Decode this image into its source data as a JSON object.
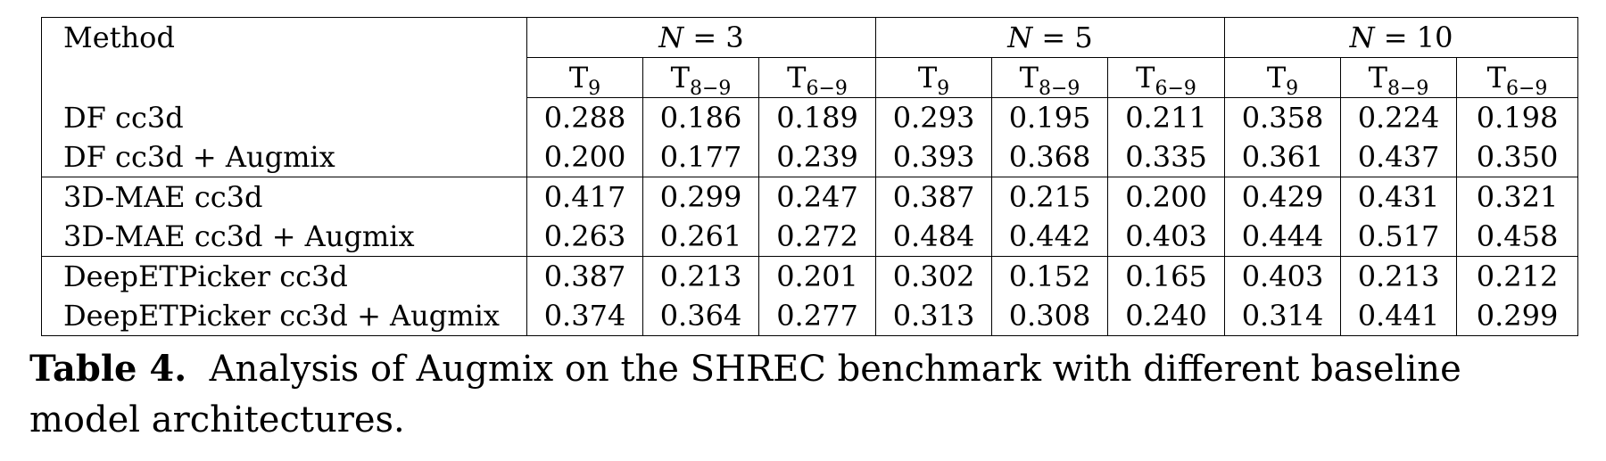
{
  "table": {
    "method_header": "Method",
    "groups": [
      {
        "label": "N = 3",
        "symbol": "N",
        "eq": "= 3"
      },
      {
        "label": "N = 5",
        "symbol": "N",
        "eq": "= 5"
      },
      {
        "label": "N = 10",
        "symbol": "N",
        "eq": "= 10"
      }
    ],
    "subcolumns": [
      {
        "base": "T",
        "sub": "9"
      },
      {
        "base": "T",
        "sub": "8−9"
      },
      {
        "base": "T",
        "sub": "6−9"
      }
    ],
    "rows": [
      {
        "method": "DF cc3d",
        "values": [
          "0.288",
          "0.186",
          "0.189",
          "0.293",
          "0.195",
          "0.211",
          "0.358",
          "0.224",
          "0.198"
        ]
      },
      {
        "method": "DF cc3d + Augmix",
        "values": [
          "0.200",
          "0.177",
          "0.239",
          "0.393",
          "0.368",
          "0.335",
          "0.361",
          "0.437",
          "0.350"
        ]
      },
      {
        "method": "3D-MAE cc3d",
        "values": [
          "0.417",
          "0.299",
          "0.247",
          "0.387",
          "0.215",
          "0.200",
          "0.429",
          "0.431",
          "0.321"
        ]
      },
      {
        "method": "3D-MAE cc3d + Augmix",
        "values": [
          "0.263",
          "0.261",
          "0.272",
          "0.484",
          "0.442",
          "0.403",
          "0.444",
          "0.517",
          "0.458"
        ]
      },
      {
        "method": "DeepETPicker cc3d",
        "values": [
          "0.387",
          "0.213",
          "0.201",
          "0.302",
          "0.152",
          "0.165",
          "0.403",
          "0.213",
          "0.212"
        ]
      },
      {
        "method": "DeepETPicker cc3d + Augmix",
        "values": [
          "0.374",
          "0.364",
          "0.277",
          "0.313",
          "0.308",
          "0.240",
          "0.314",
          "0.441",
          "0.299"
        ]
      }
    ]
  },
  "caption": {
    "label": "Table 4.",
    "text": "Analysis of Augmix on the SHREC benchmark with different baseline model architectures."
  }
}
